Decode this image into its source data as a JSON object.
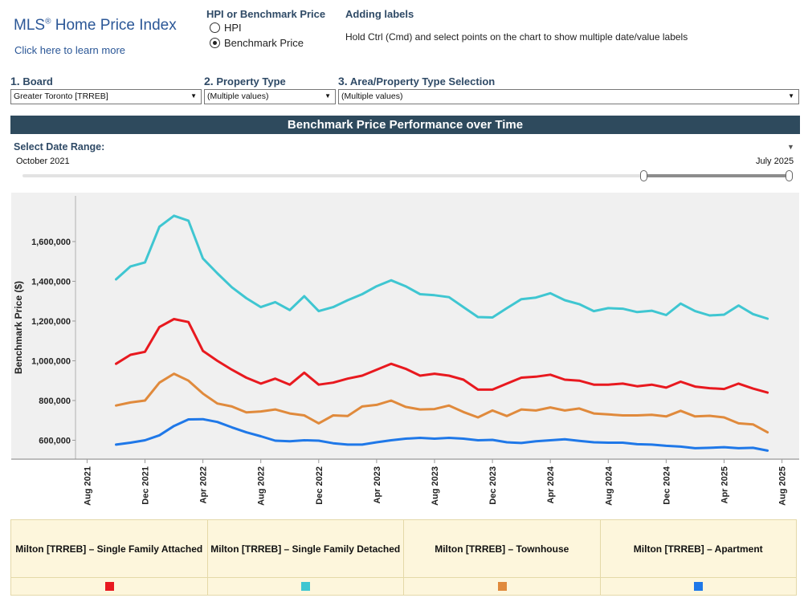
{
  "header": {
    "brand_name": "MLS",
    "brand_mark": "®",
    "brand_suffix": "Home Price Index",
    "learn_link": "Click here to learn more"
  },
  "measure_selector": {
    "title": "HPI or Benchmark Price",
    "options": [
      {
        "label": "HPI",
        "selected": false
      },
      {
        "label": "Benchmark Price",
        "selected": true
      }
    ]
  },
  "adding_labels": {
    "title": "Adding labels",
    "text": "Hold Ctrl (Cmd) and select points on the chart to show multiple date/value labels"
  },
  "filters": {
    "board": {
      "number": "1.",
      "label": "Board",
      "value": "Greater Toronto [TRREB]"
    },
    "property_type": {
      "number": "2.",
      "label": "Property Type",
      "value": "(Multiple values)"
    },
    "area": {
      "number": "3.",
      "label": "Area/Property Type Selection",
      "value": "(Multiple values)"
    }
  },
  "banner": "Benchmark Price Performance over Time",
  "date_range": {
    "title": "Select Date Range:",
    "start_label": "October 2021",
    "end_label": "July 2025"
  },
  "chart_data": {
    "type": "line",
    "title": "",
    "xlabel": "",
    "ylabel": "Benchmark Price ($)",
    "ylim": [
      505000,
      1830000
    ],
    "y_ticks": [
      600000,
      800000,
      1000000,
      1200000,
      1400000,
      1600000
    ],
    "y_tick_labels": [
      "600,000",
      "800,000",
      "1,000,000",
      "1,200,000",
      "1,400,000",
      "1,600,000"
    ],
    "x_ticks": [
      "2021-08",
      "2021-12",
      "2022-04",
      "2022-08",
      "2022-12",
      "2023-04",
      "2023-08",
      "2023-12",
      "2024-04",
      "2024-08",
      "2024-12",
      "2025-04",
      "2025-08"
    ],
    "x_tick_labels": [
      "Aug 2021",
      "Dec 2021",
      "Apr 2022",
      "Aug 2022",
      "Dec 2022",
      "Apr 2023",
      "Aug 2023",
      "Dec 2023",
      "Apr 2024",
      "Aug 2024",
      "Dec 2024",
      "Apr 2025",
      "Aug 2025"
    ],
    "grid": false,
    "background": "#f0f0f0",
    "start_month": "2021-10",
    "end_month": "2025-07",
    "series": [
      {
        "name": "Milton [TRREB] – Single Family Attached",
        "color": "#e8191f",
        "values": [
          985000,
          1030000,
          1045000,
          1170000,
          1210000,
          1195000,
          1050000,
          1000000,
          955000,
          915000,
          885000,
          910000,
          880000,
          940000,
          880000,
          890000,
          910000,
          925000,
          955000,
          985000,
          960000,
          925000,
          935000,
          925000,
          905000,
          855000,
          855000,
          885000,
          915000,
          920000,
          930000,
          905000,
          900000,
          880000,
          880000,
          885000,
          872000,
          880000,
          865000,
          895000,
          870000,
          862000,
          858000,
          885000,
          860000,
          840000
        ]
      },
      {
        "name": "Milton [TRREB] – Single Family Detached",
        "color": "#3fc6d1",
        "values": [
          1410000,
          1475000,
          1495000,
          1675000,
          1730000,
          1705000,
          1515000,
          1440000,
          1370000,
          1315000,
          1270000,
          1295000,
          1255000,
          1325000,
          1250000,
          1270000,
          1305000,
          1335000,
          1375000,
          1405000,
          1375000,
          1335000,
          1330000,
          1320000,
          1270000,
          1220000,
          1218000,
          1265000,
          1310000,
          1318000,
          1340000,
          1305000,
          1285000,
          1250000,
          1265000,
          1262000,
          1245000,
          1252000,
          1230000,
          1288000,
          1250000,
          1228000,
          1232000,
          1278000,
          1235000,
          1212000
        ]
      },
      {
        "name": "Milton [TRREB] – Townhouse",
        "color": "#e08a3c",
        "values": [
          775000,
          790000,
          800000,
          890000,
          935000,
          900000,
          835000,
          785000,
          770000,
          740000,
          745000,
          755000,
          735000,
          725000,
          685000,
          725000,
          722000,
          770000,
          778000,
          800000,
          768000,
          755000,
          757000,
          775000,
          742000,
          715000,
          750000,
          722000,
          755000,
          750000,
          765000,
          750000,
          760000,
          735000,
          730000,
          725000,
          725000,
          728000,
          720000,
          748000,
          720000,
          723000,
          715000,
          685000,
          680000,
          640000
        ]
      },
      {
        "name": "Milton [TRREB] – Apartment",
        "color": "#1f78e8",
        "values": [
          578000,
          588000,
          600000,
          625000,
          672000,
          705000,
          706000,
          692000,
          665000,
          640000,
          620000,
          598000,
          595000,
          600000,
          598000,
          585000,
          578000,
          578000,
          590000,
          600000,
          608000,
          612000,
          608000,
          612000,
          608000,
          600000,
          602000,
          590000,
          586000,
          595000,
          600000,
          605000,
          597000,
          590000,
          588000,
          588000,
          580000,
          578000,
          572000,
          568000,
          560000,
          562000,
          565000,
          560000,
          562000,
          548000
        ]
      }
    ]
  }
}
